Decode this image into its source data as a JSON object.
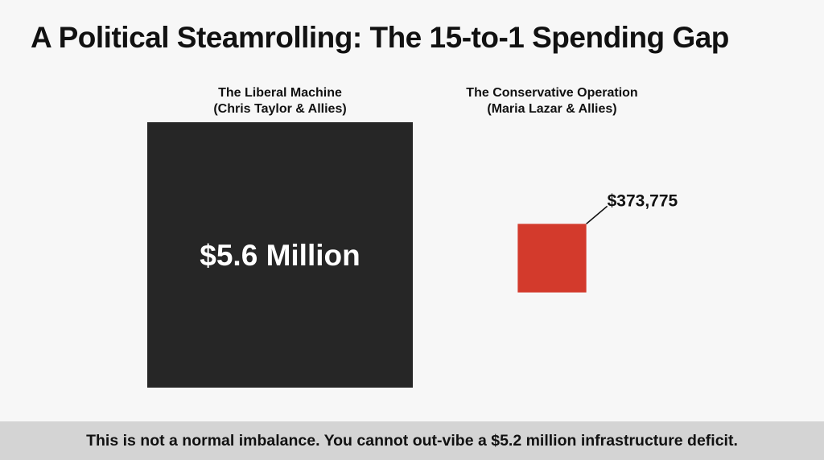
{
  "page": {
    "title": "A Political Steamrolling: The 15-to-1 Spending Gap",
    "caption": "This is not a normal imbalance. You cannot out-vibe a $5.2 million infrastructure deficit."
  },
  "chart_data": {
    "type": "proportional-area squares",
    "title": "A Political Steamrolling: The 15-to-1 Spending Gap",
    "series": [
      {
        "name": "The Liberal Machine",
        "subtitle": "(Chris Taylor & Allies)",
        "value": 5600000,
        "label": "$5.6 Million",
        "color": "#262626",
        "label_position": "inside"
      },
      {
        "name": "The Conservative Operation",
        "subtitle": "(Maria Lazar & Allies)",
        "value": 373775,
        "label": "$373,775",
        "color": "#d33a2c",
        "label_position": "callout"
      }
    ]
  }
}
